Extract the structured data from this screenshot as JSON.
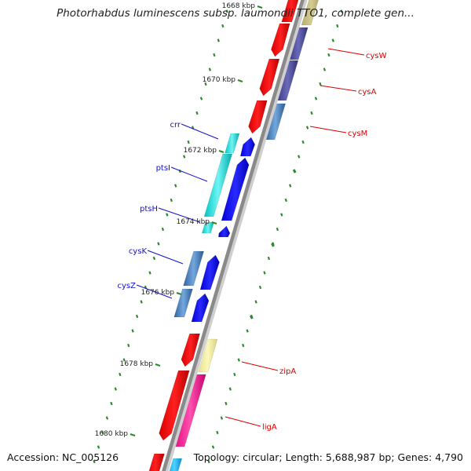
{
  "map": {
    "title": "Photorhabdus luminescens subsp. laumondii TTO1, complete gen...",
    "accession_text": "Accession: NC_005126",
    "summary_text": "Topology: circular; Length: 5,688,987 bp; Genes: 4,790",
    "colors": {
      "backbone": "#8a8a8a",
      "ticks": "#2a8a2a",
      "right_labels": "#dd0000",
      "left_labels": "#1111cc"
    },
    "tick_labels": [
      "1668 kbp",
      "1670 kbp",
      "1672 kbp",
      "1674 kbp",
      "1676 kbp",
      "1678 kbp",
      "1680 kbp"
    ],
    "gene_labels_right": [
      "cysW",
      "cysA",
      "cysM",
      "zipA",
      "ligA"
    ],
    "gene_labels_left": [
      "crr",
      "ptsI",
      "ptsH",
      "cysK",
      "cysZ"
    ]
  }
}
